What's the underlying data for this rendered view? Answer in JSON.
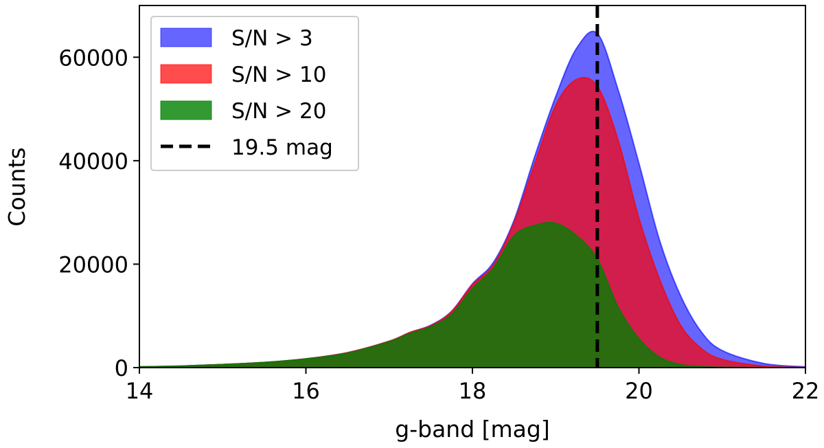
{
  "chart_data": {
    "type": "area",
    "title": "",
    "xlabel": "g-band [mag]",
    "ylabel": "Counts",
    "xlim": [
      14,
      22
    ],
    "ylim": [
      0,
      70000
    ],
    "xticks": [
      14,
      16,
      18,
      20,
      22
    ],
    "yticks": [
      0,
      20000,
      40000,
      60000
    ],
    "grid": false,
    "legend_position": "top-left",
    "x": [
      14,
      14.5,
      15,
      15.5,
      16,
      16.5,
      17,
      17.25,
      17.5,
      17.75,
      18,
      18.25,
      18.5,
      18.75,
      19,
      19.25,
      19.5,
      19.75,
      20,
      20.25,
      20.5,
      20.75,
      21,
      21.5,
      22
    ],
    "series": [
      {
        "name": "S/N > 3",
        "color": "#0000ff",
        "opacity": 0.6,
        "values": [
          150,
          300,
          600,
          1000,
          1700,
          2900,
          5100,
          6800,
          8200,
          10900,
          16200,
          20300,
          28500,
          40900,
          52400,
          61700,
          64600,
          53700,
          39500,
          24500,
          13900,
          6900,
          3300,
          800,
          150
        ]
      },
      {
        "name": "S/N > 10",
        "color": "#ff0000",
        "opacity": 0.7,
        "values": [
          150,
          300,
          600,
          1000,
          1700,
          2900,
          5100,
          6800,
          8100,
          10800,
          16000,
          19800,
          28000,
          39500,
          50700,
          55700,
          54400,
          44000,
          28900,
          17000,
          8200,
          3700,
          1600,
          300,
          50
        ]
      },
      {
        "name": "S/N > 20",
        "color": "#008000",
        "opacity": 0.8,
        "values": [
          150,
          300,
          600,
          1000,
          1700,
          2800,
          5000,
          6600,
          7900,
          10300,
          15300,
          19200,
          25500,
          27500,
          27900,
          25500,
          21000,
          11700,
          5600,
          2000,
          600,
          200,
          60,
          10,
          0
        ]
      }
    ],
    "vline": {
      "x": 19.5,
      "label": "19.5 mag",
      "color": "#000000",
      "style": "dashed"
    }
  }
}
